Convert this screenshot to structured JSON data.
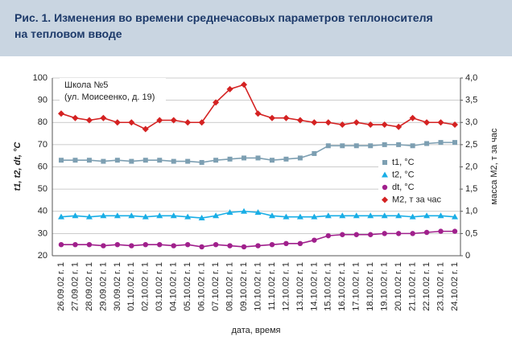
{
  "chart_data": {
    "type": "line",
    "title": [
      "Рис. 1. Изменения во времени среднечасовых параметров теплоносителя",
      "на тепловом вводе"
    ],
    "annotation": [
      "Школа №5",
      "(ул. Моисеенко, д. 19)"
    ],
    "x_label": "дата, время",
    "y_label": "t1, t2, dt, °C",
    "y2_label": "масса M2, т за час",
    "categories": [
      "26.09.02 г. 1",
      "27.09.02 г. 1",
      "28.09.02 г. 1",
      "29.09.02 г. 1",
      "30.09.02 г. 1",
      "01.10.02 г. 1",
      "02.10.02 г. 1",
      "03.10.02 г. 1",
      "04.10.02 г. 1",
      "05.10.02 г. 1",
      "06.10.02 г. 1",
      "07.10.02 г. 1",
      "08.10.02 г. 1",
      "09.10.02 г. 1",
      "10.10.02 г. 1",
      "11.10.02 г. 1",
      "12.10.02 г. 1",
      "13.10.02 г. 1",
      "14.10.02 г. 1",
      "15.10.02 г. 1",
      "16.10.02 г. 1",
      "17.10.02 г. 1",
      "18.10.02 г. 1",
      "19.10.02 г. 1",
      "20.10.02 г. 1",
      "21.10.02 г. 1",
      "22.10.02 г. 1",
      "23.10.02 г. 1",
      "24.10.02 г. 1"
    ],
    "series": [
      {
        "name": "t1, °C",
        "color": "#7d9fb2",
        "marker": "square",
        "values": [
          63,
          63,
          63,
          62.5,
          63,
          62.5,
          63,
          63,
          62.5,
          62.5,
          62,
          63,
          63.5,
          64,
          64,
          63,
          63.5,
          64,
          66,
          69.5,
          69.5,
          69.5,
          69.5,
          70,
          70,
          69.5,
          70.5,
          71,
          71
        ]
      },
      {
        "name": "t2, °C",
        "color": "#19aee6",
        "marker": "triangle",
        "values": [
          37.5,
          38,
          37.5,
          38,
          38,
          38,
          37.5,
          38,
          38,
          37.5,
          37,
          38,
          39.5,
          40,
          39.5,
          38,
          37.5,
          37.5,
          37.5,
          38,
          38,
          38,
          38,
          38,
          38,
          37.5,
          38,
          38,
          37.5
        ]
      },
      {
        "name": "dt, °C",
        "color": "#a0208c",
        "marker": "circle",
        "values": [
          25,
          25,
          25,
          24.5,
          25,
          24.5,
          25,
          25,
          24.5,
          25,
          24,
          25,
          24.5,
          24,
          24.5,
          25,
          25.5,
          25.5,
          27,
          29,
          29.5,
          29.5,
          29.5,
          30,
          30,
          30,
          30.5,
          31,
          31
        ]
      },
      {
        "name": "M2, т за час",
        "color": "#d42222",
        "marker": "diamond",
        "axis": "y2",
        "values": [
          3.2,
          3.1,
          3.05,
          3.1,
          3.0,
          3.0,
          2.85,
          3.05,
          3.05,
          3.0,
          3.0,
          3.45,
          3.75,
          3.85,
          3.2,
          3.1,
          3.1,
          3.05,
          3.0,
          3.0,
          2.95,
          3.0,
          2.95,
          2.95,
          2.9,
          3.1,
          3.0,
          3.0,
          2.95
        ]
      }
    ],
    "ylim": [
      20,
      100
    ],
    "yticks": [
      20,
      30,
      40,
      50,
      60,
      70,
      80,
      90,
      100
    ],
    "y2lim": [
      0,
      4
    ],
    "y2ticks": [
      0,
      {
        "value": 0.5,
        "label": "0,5"
      },
      {
        "value": 1,
        "label": "1,0"
      },
      {
        "value": 1.5,
        "label": "1,5"
      },
      {
        "value": 2,
        "label": "2,0"
      },
      {
        "value": 2.5,
        "label": "2,5"
      },
      {
        "value": 3,
        "label": "3,0"
      },
      {
        "value": 3.5,
        "label": "3,5"
      },
      {
        "value": 4,
        "label": "4,0"
      }
    ],
    "grid": true
  }
}
